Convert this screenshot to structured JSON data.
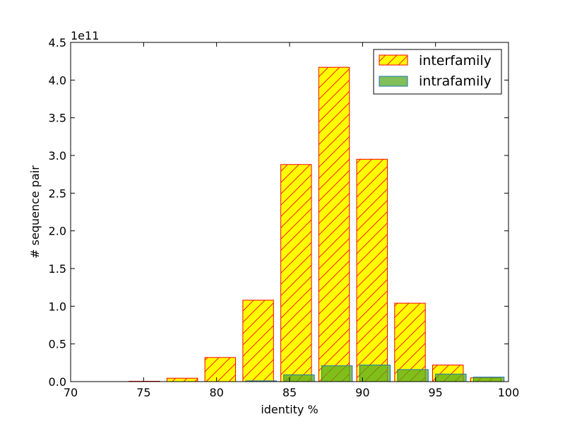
{
  "chart_data": {
    "type": "bar",
    "xlabel": "identity %",
    "ylabel": "# sequence pair",
    "offset_label": "1e11",
    "xlim": [
      70,
      100
    ],
    "ylim": [
      0,
      4.5
    ],
    "x_ticks": [
      70,
      75,
      80,
      85,
      90,
      95,
      100
    ],
    "x_tick_labels": [
      "70",
      "75",
      "80",
      "85",
      "90",
      "95",
      "100"
    ],
    "y_ticks": [
      0,
      0.5,
      1,
      1.5,
      2,
      2.5,
      3,
      3.5,
      4,
      4.5
    ],
    "y_tick_labels": [
      "0.0",
      "0.5",
      "1.0",
      "1.5",
      "2.0",
      "2.5",
      "3.0",
      "3.5",
      "4.0",
      "4.5"
    ],
    "grid": false,
    "legend_position": "top-right",
    "y_unit_multiplier": 100000000000,
    "bar_width": 2.1,
    "series": [
      {
        "name": "interfamily",
        "color": "#ffff00",
        "edge_color": "#ff0000",
        "hatch": "diagonal",
        "bins": [
          {
            "x_start": 74.0,
            "value": 0.005
          },
          {
            "x_start": 76.6,
            "value": 0.045
          },
          {
            "x_start": 79.2,
            "value": 0.32
          },
          {
            "x_start": 81.8,
            "value": 1.08
          },
          {
            "x_start": 84.4,
            "value": 2.88
          },
          {
            "x_start": 87.0,
            "value": 4.17
          },
          {
            "x_start": 89.6,
            "value": 2.95
          },
          {
            "x_start": 92.2,
            "value": 1.04
          },
          {
            "x_start": 94.8,
            "value": 0.22
          },
          {
            "x_start": 97.4,
            "value": 0.05
          }
        ]
      },
      {
        "name": "intrafamily",
        "color": "#55aa22",
        "edge_color": "#1f77b4",
        "hatch": "none",
        "bins": [
          {
            "x_start": 82.0,
            "value": 0.01
          },
          {
            "x_start": 84.6,
            "value": 0.09
          },
          {
            "x_start": 87.2,
            "value": 0.21
          },
          {
            "x_start": 89.8,
            "value": 0.22
          },
          {
            "x_start": 92.4,
            "value": 0.16
          },
          {
            "x_start": 95.0,
            "value": 0.1
          },
          {
            "x_start": 97.6,
            "value": 0.06
          }
        ]
      }
    ]
  }
}
